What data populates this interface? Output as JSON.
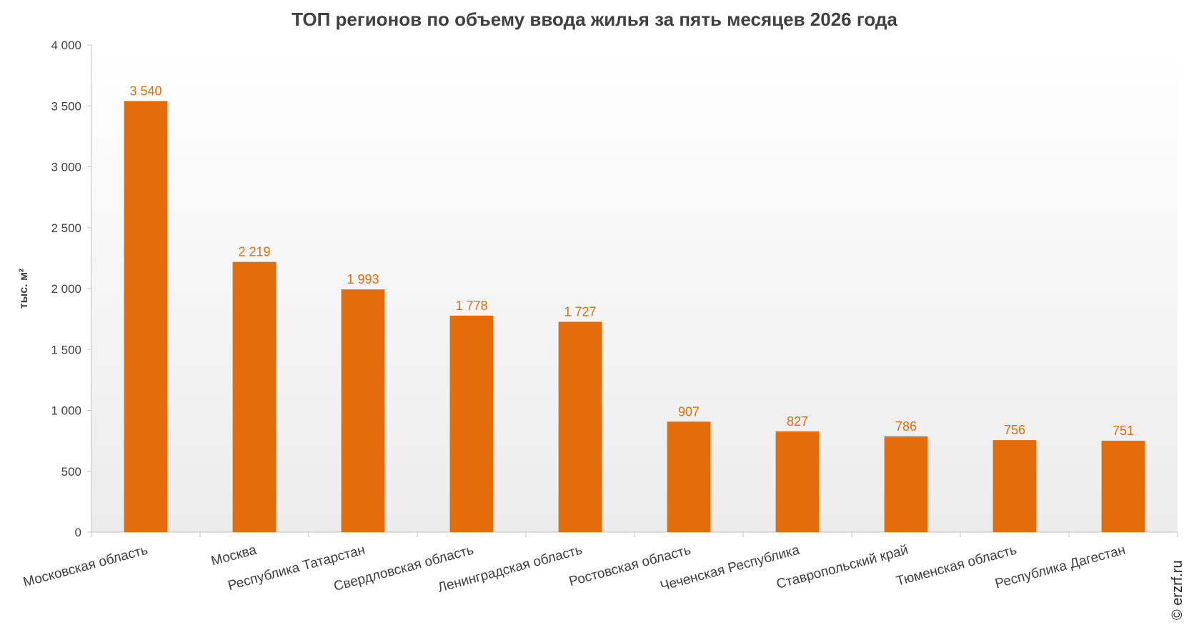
{
  "chart_data": {
    "type": "bar",
    "title": "ТОП регионов по объему ввода жилья за пять месяцев 2026 года",
    "ylabel": "тыс. м²",
    "xlabel": "",
    "ylim": [
      0,
      4000
    ],
    "yticks": [
      0,
      500,
      1000,
      1500,
      2000,
      2500,
      3000,
      3500,
      4000
    ],
    "ytick_labels": [
      "0",
      "500",
      "1 000",
      "1 500",
      "2 000",
      "2 500",
      "3 000",
      "3 500",
      "4 000"
    ],
    "categories": [
      "Московская  область",
      "Москва",
      "Республика  Татарстан",
      "Свердловская  область",
      "Ленинградская  область",
      "Ростовская  область",
      "Чеченская  Республика",
      "Ставропольский  край",
      "Тюменская  область",
      "Республика  Дагестан"
    ],
    "values": [
      3540,
      2219,
      1993,
      1778,
      1727,
      907,
      827,
      786,
      756,
      751
    ],
    "value_labels": [
      "3 540",
      "2 219",
      "1 993",
      "1 778",
      "1 727",
      "907",
      "827",
      "786",
      "756",
      "751"
    ],
    "bar_color": "#e46c0a",
    "grid": false,
    "legend": "none"
  },
  "copyright": "© erzrf.ru"
}
